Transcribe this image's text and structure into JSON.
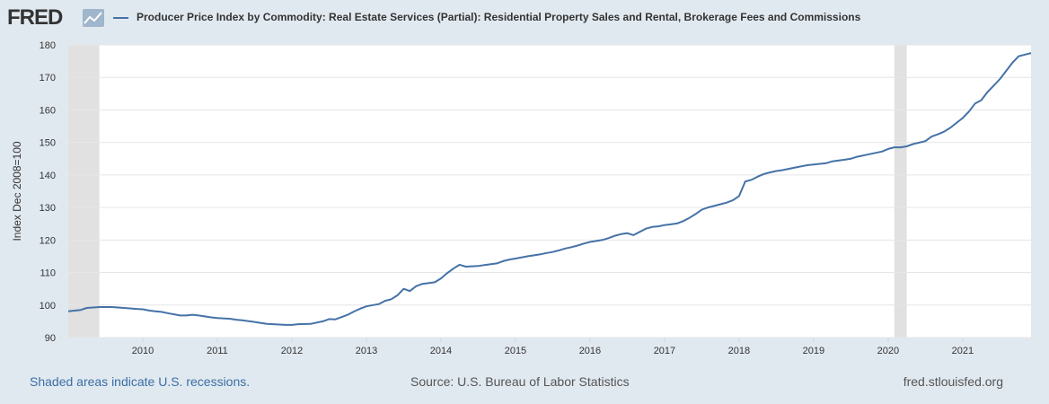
{
  "header": {
    "logo_text": "FRED",
    "legend_label": "Producer Price Index by Commodity: Real Estate Services (Partial): Residential Property Sales and Rental, Brokerage Fees and Commissions"
  },
  "footer": {
    "recessions_note": "Shaded areas indicate U.S. recessions.",
    "source": "Source: U.S. Bureau of Labor Statistics",
    "site": "fred.stlouisfed.org"
  },
  "colors": {
    "line": "#4572a7",
    "background": "#e1e9f0",
    "plot": "#ffffff",
    "recession": "#e1e1e1"
  },
  "chart_data": {
    "type": "line",
    "title": "Producer Price Index by Commodity: Real Estate Services (Partial): Residential Property Sales and Rental, Brokerage Fees and Commissions",
    "xlabel": "",
    "ylabel": "Index Dec 2008=100",
    "xlim": [
      2009.0,
      2021.917
    ],
    "ylim": [
      90,
      180
    ],
    "yticks": [
      90,
      100,
      110,
      120,
      130,
      140,
      150,
      160,
      170,
      180
    ],
    "xticks": [
      "2010",
      "2011",
      "2012",
      "2013",
      "2014",
      "2015",
      "2016",
      "2017",
      "2018",
      "2019",
      "2020",
      "2021"
    ],
    "grid": true,
    "legend": "top-left",
    "recessions": [
      [
        2009.0,
        2009.417
      ],
      [
        2020.083,
        2020.25
      ]
    ],
    "series": [
      {
        "name": "Producer Price Index by Commodity: Real Estate Services (Partial): Residential Property Sales and Rental, Brokerage Fees and Commissions",
        "x": [
          2009.0,
          2009.167,
          2009.25,
          2009.417,
          2009.583,
          2009.75,
          2009.917,
          2010.0,
          2010.083,
          2010.167,
          2010.25,
          2010.333,
          2010.5,
          2010.583,
          2010.667,
          2010.75,
          2010.917,
          2011.0,
          2011.167,
          2011.25,
          2011.333,
          2011.5,
          2011.583,
          2011.667,
          2011.75,
          2011.917,
          2012.0,
          2012.083,
          2012.25,
          2012.333,
          2012.417,
          2012.5,
          2012.583,
          2012.667,
          2012.75,
          2012.833,
          2012.917,
          2013.0,
          2013.167,
          2013.25,
          2013.333,
          2013.417,
          2013.5,
          2013.583,
          2013.667,
          2013.75,
          2013.917,
          2014.0,
          2014.083,
          2014.167,
          2014.25,
          2014.333,
          2014.5,
          2014.583,
          2014.75,
          2014.833,
          2014.917,
          2015.0,
          2015.167,
          2015.25,
          2015.333,
          2015.417,
          2015.5,
          2015.583,
          2015.667,
          2015.75,
          2015.833,
          2015.917,
          2016.0,
          2016.167,
          2016.25,
          2016.333,
          2016.417,
          2016.5,
          2016.583,
          2016.75,
          2016.833,
          2016.917,
          2017.0,
          2017.083,
          2017.167,
          2017.25,
          2017.333,
          2017.417,
          2017.5,
          2017.583,
          2017.75,
          2017.833,
          2017.917,
          2018.0,
          2018.083,
          2018.167,
          2018.25,
          2018.333,
          2018.417,
          2018.5,
          2018.583,
          2018.75,
          2018.917,
          2019.0,
          2019.167,
          2019.25,
          2019.417,
          2019.5,
          2019.583,
          2019.75,
          2019.917,
          2020.0,
          2020.083,
          2020.167,
          2020.25,
          2020.333,
          2020.5,
          2020.583,
          2020.667,
          2020.75,
          2020.833,
          2020.917,
          2021.0,
          2021.083,
          2021.167,
          2021.25,
          2021.333,
          2021.417,
          2021.5,
          2021.583,
          2021.667,
          2021.75,
          2021.917
        ],
        "values": [
          98.1,
          98.5,
          99.1,
          99.4,
          99.4,
          99.1,
          98.8,
          98.7,
          98.3,
          98.1,
          97.9,
          97.5,
          96.8,
          96.8,
          97.0,
          96.8,
          96.2,
          96.0,
          95.8,
          95.5,
          95.3,
          94.8,
          94.5,
          94.2,
          94.1,
          93.9,
          93.9,
          94.1,
          94.2,
          94.6,
          95.0,
          95.7,
          95.6,
          96.3,
          97.0,
          98.0,
          98.9,
          99.6,
          100.3,
          101.3,
          101.8,
          103.0,
          105.0,
          104.3,
          105.8,
          106.5,
          107.0,
          108.2,
          109.8,
          111.2,
          112.4,
          111.8,
          112.0,
          112.3,
          112.8,
          113.5,
          114.0,
          114.3,
          115.0,
          115.3,
          115.6,
          116.0,
          116.3,
          116.8,
          117.4,
          117.8,
          118.3,
          118.9,
          119.4,
          120.0,
          120.6,
          121.3,
          121.8,
          122.1,
          121.5,
          123.5,
          124.0,
          124.2,
          124.6,
          124.8,
          125.1,
          125.8,
          126.8,
          128.0,
          129.3,
          130.0,
          131.0,
          131.5,
          132.2,
          133.5,
          138.0,
          138.5,
          139.5,
          140.3,
          140.8,
          141.2,
          141.5,
          142.3,
          143.0,
          143.2,
          143.6,
          144.2,
          144.7,
          145.0,
          145.6,
          146.4,
          147.2,
          148.0,
          148.5,
          148.5,
          148.8,
          149.5,
          150.4,
          151.8,
          152.5,
          153.3,
          154.5,
          156.0,
          157.5,
          159.5,
          162.0,
          163.0,
          165.5,
          167.5,
          169.5,
          172.0,
          174.5,
          176.5,
          177.5
        ]
      }
    ]
  }
}
